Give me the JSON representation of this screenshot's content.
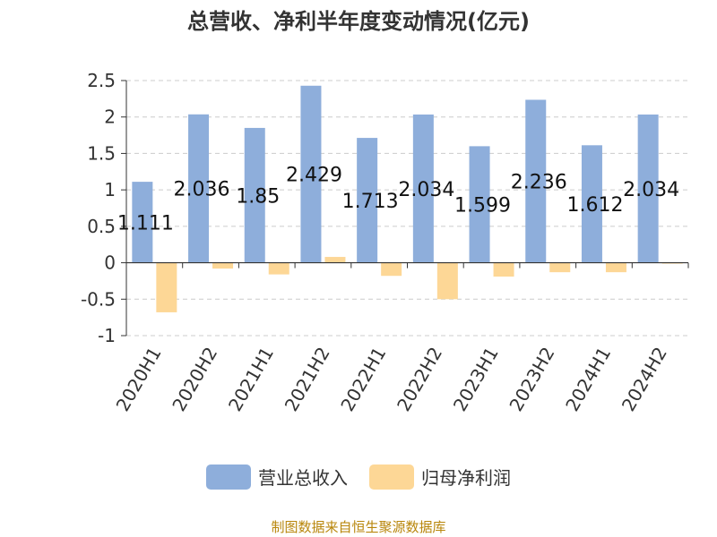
{
  "chart_data": {
    "type": "bar",
    "title": "总营收、净利半年度变动情况(亿元)",
    "categories": [
      "2020H1",
      "2020H2",
      "2021H1",
      "2021H2",
      "2022H1",
      "2022H2",
      "2023H1",
      "2023H2",
      "2024H1",
      "2024H2"
    ],
    "series": [
      {
        "name": "营业总收入",
        "color": "#8eaedb",
        "values": [
          1.111,
          2.036,
          1.85,
          2.429,
          1.713,
          2.034,
          1.599,
          2.236,
          1.612,
          2.034
        ],
        "labels": [
          "1.111",
          "2.036",
          "1.85",
          "2.429",
          "1.713",
          "2.034",
          "1.599",
          "2.236",
          "1.612",
          "2.034"
        ]
      },
      {
        "name": "归母净利润",
        "color": "#fdd796",
        "values": [
          -0.68,
          -0.08,
          -0.16,
          0.08,
          -0.18,
          -0.5,
          -0.19,
          -0.13,
          -0.13,
          -0.01
        ]
      }
    ],
    "ylim": [
      -1,
      2.5
    ],
    "yticks": [
      "-1",
      "-0.5",
      "0",
      "0.5",
      "1",
      "1.5",
      "2",
      "2.5"
    ],
    "grid": true,
    "legend_position": "bottom"
  },
  "footer": {
    "source": "制图数据来自恒生聚源数据库"
  }
}
